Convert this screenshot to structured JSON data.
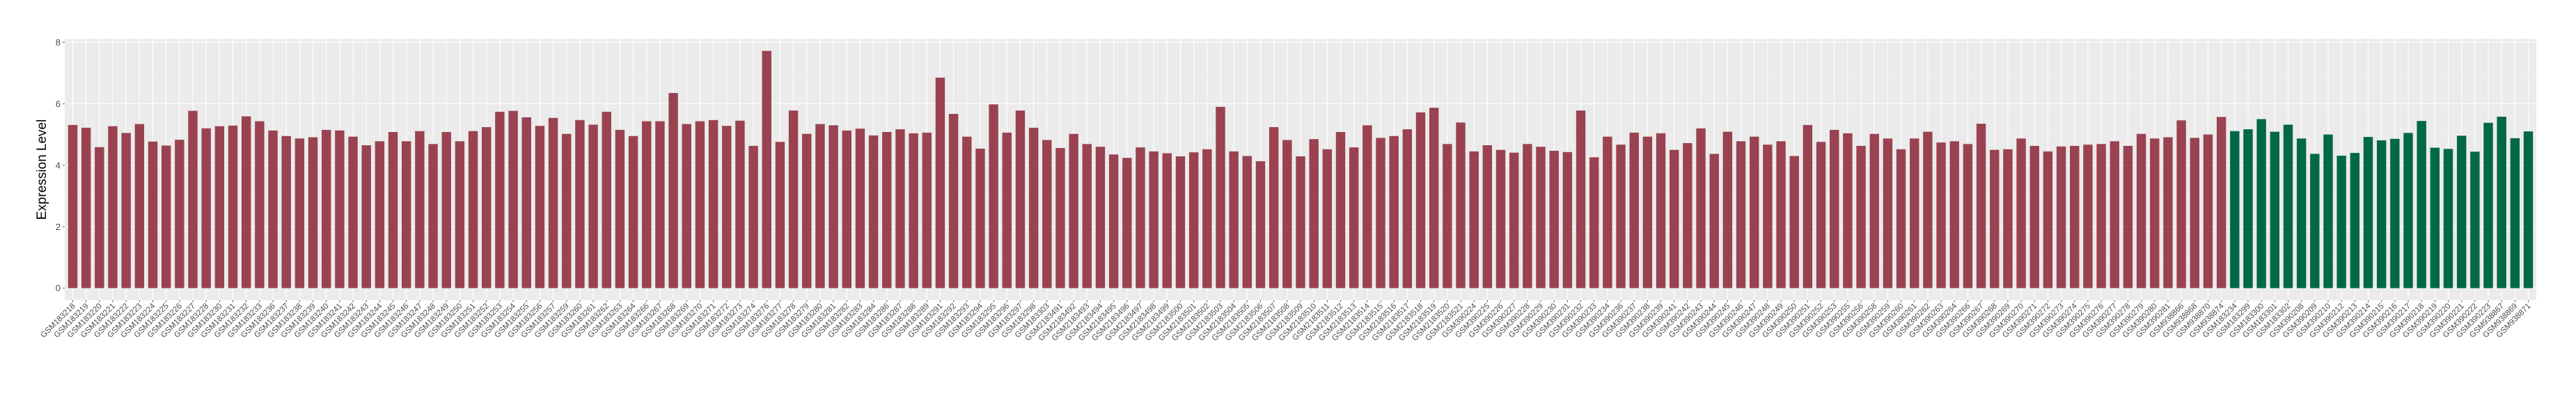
{
  "chart_data": {
    "type": "bar",
    "title": "",
    "xlabel": "",
    "ylabel": "Expression Level",
    "ylim": [
      -0.39,
      8.11
    ],
    "yticks": [
      0,
      2,
      4,
      6,
      8
    ],
    "grid": true,
    "background": "#EBEBEB",
    "series": [
      {
        "color": "#9A4250",
        "categories": [
          "GSM183218",
          "GSM183219",
          "GSM183220",
          "GSM183221",
          "GSM183222",
          "GSM183223",
          "GSM183224",
          "GSM183225",
          "GSM183226",
          "GSM183227",
          "GSM183228",
          "GSM183230",
          "GSM183231",
          "GSM183232",
          "GSM183233",
          "GSM183236",
          "GSM183237",
          "GSM183238",
          "GSM183239",
          "GSM183240",
          "GSM183241",
          "GSM183242",
          "GSM183243",
          "GSM183244",
          "GSM183245",
          "GSM183246",
          "GSM183247",
          "GSM183248",
          "GSM183249",
          "GSM183250",
          "GSM183251",
          "GSM183252",
          "GSM183253",
          "GSM183254",
          "GSM183255",
          "GSM183256",
          "GSM183257",
          "GSM183259",
          "GSM183260",
          "GSM183261",
          "GSM183262",
          "GSM183263",
          "GSM183264",
          "GSM183266",
          "GSM183267",
          "GSM183268",
          "GSM183269",
          "GSM183270",
          "GSM183271",
          "GSM183272",
          "GSM183273",
          "GSM183274",
          "GSM183276",
          "GSM183277",
          "GSM183278",
          "GSM183279",
          "GSM183280",
          "GSM183281",
          "GSM183282",
          "GSM183283",
          "GSM183284",
          "GSM183286",
          "GSM183287",
          "GSM183288",
          "GSM183289",
          "GSM183291",
          "GSM183292",
          "GSM183293",
          "GSM183294",
          "GSM183295",
          "GSM183296",
          "GSM183297",
          "GSM183298",
          "GSM183303",
          "GSM2183491",
          "GSM2183492",
          "GSM2183493",
          "GSM2183494",
          "GSM2183495",
          "GSM2183496",
          "GSM2183497",
          "GSM2183498",
          "GSM2183499",
          "GSM2183500",
          "GSM2183501",
          "GSM2183502",
          "GSM2183503",
          "GSM2183504",
          "GSM2183505",
          "GSM2183506",
          "GSM2183507",
          "GSM2183508",
          "GSM2183509",
          "GSM2183510",
          "GSM2183511",
          "GSM2183512",
          "GSM2183513",
          "GSM2183514",
          "GSM2183515",
          "GSM2183516",
          "GSM2183517",
          "GSM2183518",
          "GSM2183519",
          "GSM2183520",
          "GSM2183521",
          "GSM390224",
          "GSM390225",
          "GSM390226",
          "GSM390227",
          "GSM390228",
          "GSM390229",
          "GSM390230",
          "GSM390231",
          "GSM390232",
          "GSM390233",
          "GSM390234",
          "GSM390236",
          "GSM390237",
          "GSM390238",
          "GSM390239",
          "GSM390241",
          "GSM390242",
          "GSM390243",
          "GSM390244",
          "GSM390245",
          "GSM390246",
          "GSM390247",
          "GSM390248",
          "GSM390249",
          "GSM390250",
          "GSM390251",
          "GSM390252",
          "GSM390253",
          "GSM390255",
          "GSM390256",
          "GSM390258",
          "GSM390259",
          "GSM390260",
          "GSM390261",
          "GSM390262",
          "GSM390263",
          "GSM390264",
          "GSM390266",
          "GSM390267",
          "GSM390268",
          "GSM390269",
          "GSM390270",
          "GSM390271",
          "GSM390272",
          "GSM390273",
          "GSM390274",
          "GSM390275",
          "GSM390276",
          "GSM390277",
          "GSM390278",
          "GSM390279",
          "GSM390280",
          "GSM390281",
          "GSM938866",
          "GSM938868",
          "GSM938870",
          "GSM938874"
        ],
        "values": [
          5.31,
          5.22,
          4.59,
          5.27,
          5.05,
          5.34,
          4.77,
          4.64,
          4.83,
          5.77,
          5.2,
          5.27,
          5.29,
          5.59,
          5.43,
          5.13,
          4.95,
          4.87,
          4.91,
          5.15,
          5.13,
          4.93,
          4.65,
          4.78,
          5.08,
          4.78,
          5.11,
          4.69,
          5.08,
          4.78,
          5.11,
          5.24,
          5.74,
          5.77,
          5.56,
          5.28,
          5.54,
          5.02,
          5.47,
          5.32,
          5.74,
          5.15,
          4.95,
          5.43,
          5.43,
          6.35,
          5.34,
          5.43,
          5.47,
          5.28,
          5.45,
          4.63,
          7.72,
          4.76,
          5.78,
          5.02,
          5.34,
          5.3,
          5.13,
          5.19,
          4.97,
          5.08,
          5.17,
          5.04,
          5.06,
          6.85,
          5.67,
          4.93,
          4.54,
          5.98,
          5.06,
          5.78,
          5.22,
          4.82,
          4.56,
          5.02,
          4.69,
          4.6,
          4.35,
          4.24,
          4.58,
          4.45,
          4.39,
          4.29,
          4.42,
          4.52,
          5.9,
          4.45,
          4.3,
          4.13,
          5.24,
          4.82,
          4.29,
          4.85,
          4.52,
          5.08,
          4.58,
          5.3,
          4.89,
          4.95,
          5.17,
          5.72,
          5.87,
          4.69,
          5.39,
          4.45,
          4.65,
          4.5,
          4.41,
          4.69,
          4.6,
          4.47,
          4.43,
          5.78,
          4.26,
          4.93,
          4.67,
          5.06,
          4.93,
          5.04,
          4.5,
          4.72,
          5.2,
          4.37,
          5.09,
          4.78,
          4.93,
          4.67,
          4.78,
          4.3,
          5.31,
          4.76,
          5.15,
          5.04,
          4.63,
          5.02,
          4.87,
          4.52,
          4.87,
          5.09,
          4.74,
          4.78,
          4.69,
          5.35,
          4.5,
          4.52,
          4.87,
          4.63,
          4.45,
          4.61,
          4.63,
          4.67,
          4.69,
          4.78,
          4.63,
          5.02,
          4.87,
          4.91,
          5.46,
          4.89,
          5.0,
          5.57
        ]
      },
      {
        "color": "#006846",
        "categories": [
          "GSM183234",
          "GSM183299",
          "GSM183300",
          "GSM183301",
          "GSM183302",
          "GSM390208",
          "GSM390209",
          "GSM390210",
          "GSM390212",
          "GSM390213",
          "GSM390214",
          "GSM390215",
          "GSM390216",
          "GSM390217",
          "GSM390218",
          "GSM390219",
          "GSM390220",
          "GSM390221",
          "GSM390222",
          "GSM390223",
          "GSM938867",
          "GSM938869",
          "GSM938871"
        ],
        "values": [
          5.11,
          5.17,
          5.5,
          5.09,
          5.32,
          4.87,
          4.37,
          5.0,
          4.31,
          4.4,
          4.92,
          4.81,
          4.86,
          5.05,
          5.44,
          4.57,
          4.53,
          4.96,
          4.44,
          5.38,
          5.58,
          4.88,
          5.1
        ]
      }
    ]
  }
}
